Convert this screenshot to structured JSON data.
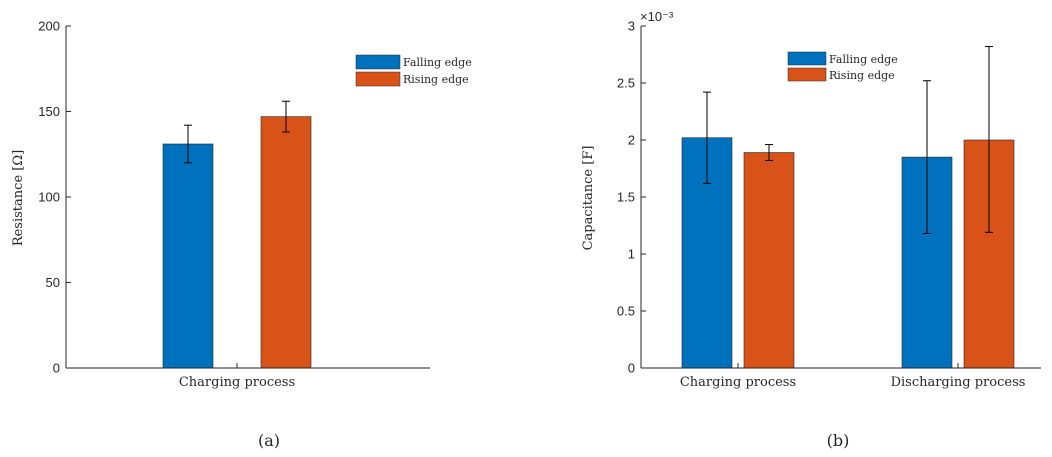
{
  "chart_data": [
    {
      "type": "bar",
      "caption": "(a)",
      "categories": [
        "Charging process"
      ],
      "ylabel": "Resistance [Ω]",
      "ylim": [
        0,
        200
      ],
      "yticks": [
        "0",
        "50",
        "100",
        "150",
        "200"
      ],
      "legend_position": "top-right",
      "series": [
        {
          "name": "Falling edge",
          "color": "#0072BD",
          "values": [
            131
          ],
          "err_low": [
            120
          ],
          "err_high": [
            142
          ]
        },
        {
          "name": "Rising edge",
          "color": "#D95319",
          "values": [
            147
          ],
          "err_low": [
            138
          ],
          "err_high": [
            156
          ]
        }
      ]
    },
    {
      "type": "bar",
      "caption": "(b)",
      "categories": [
        "Charging process",
        "Discharging process"
      ],
      "ylabel": "Capacitance [F]",
      "yscale_label": "×10⁻³",
      "ylim": [
        0,
        3
      ],
      "yticks": [
        "0",
        "0.5",
        "1",
        "1.5",
        "2",
        "2.5",
        "3"
      ],
      "legend_position": "top-center",
      "series": [
        {
          "name": "Falling edge",
          "color": "#0072BD",
          "values": [
            2.02,
            1.85
          ],
          "err_low": [
            1.62,
            1.18
          ],
          "err_high": [
            2.42,
            2.52
          ]
        },
        {
          "name": "Rising edge",
          "color": "#D95319",
          "values": [
            1.89,
            2.0
          ],
          "err_low": [
            1.82,
            1.19
          ],
          "err_high": [
            1.96,
            2.82
          ]
        }
      ]
    }
  ]
}
